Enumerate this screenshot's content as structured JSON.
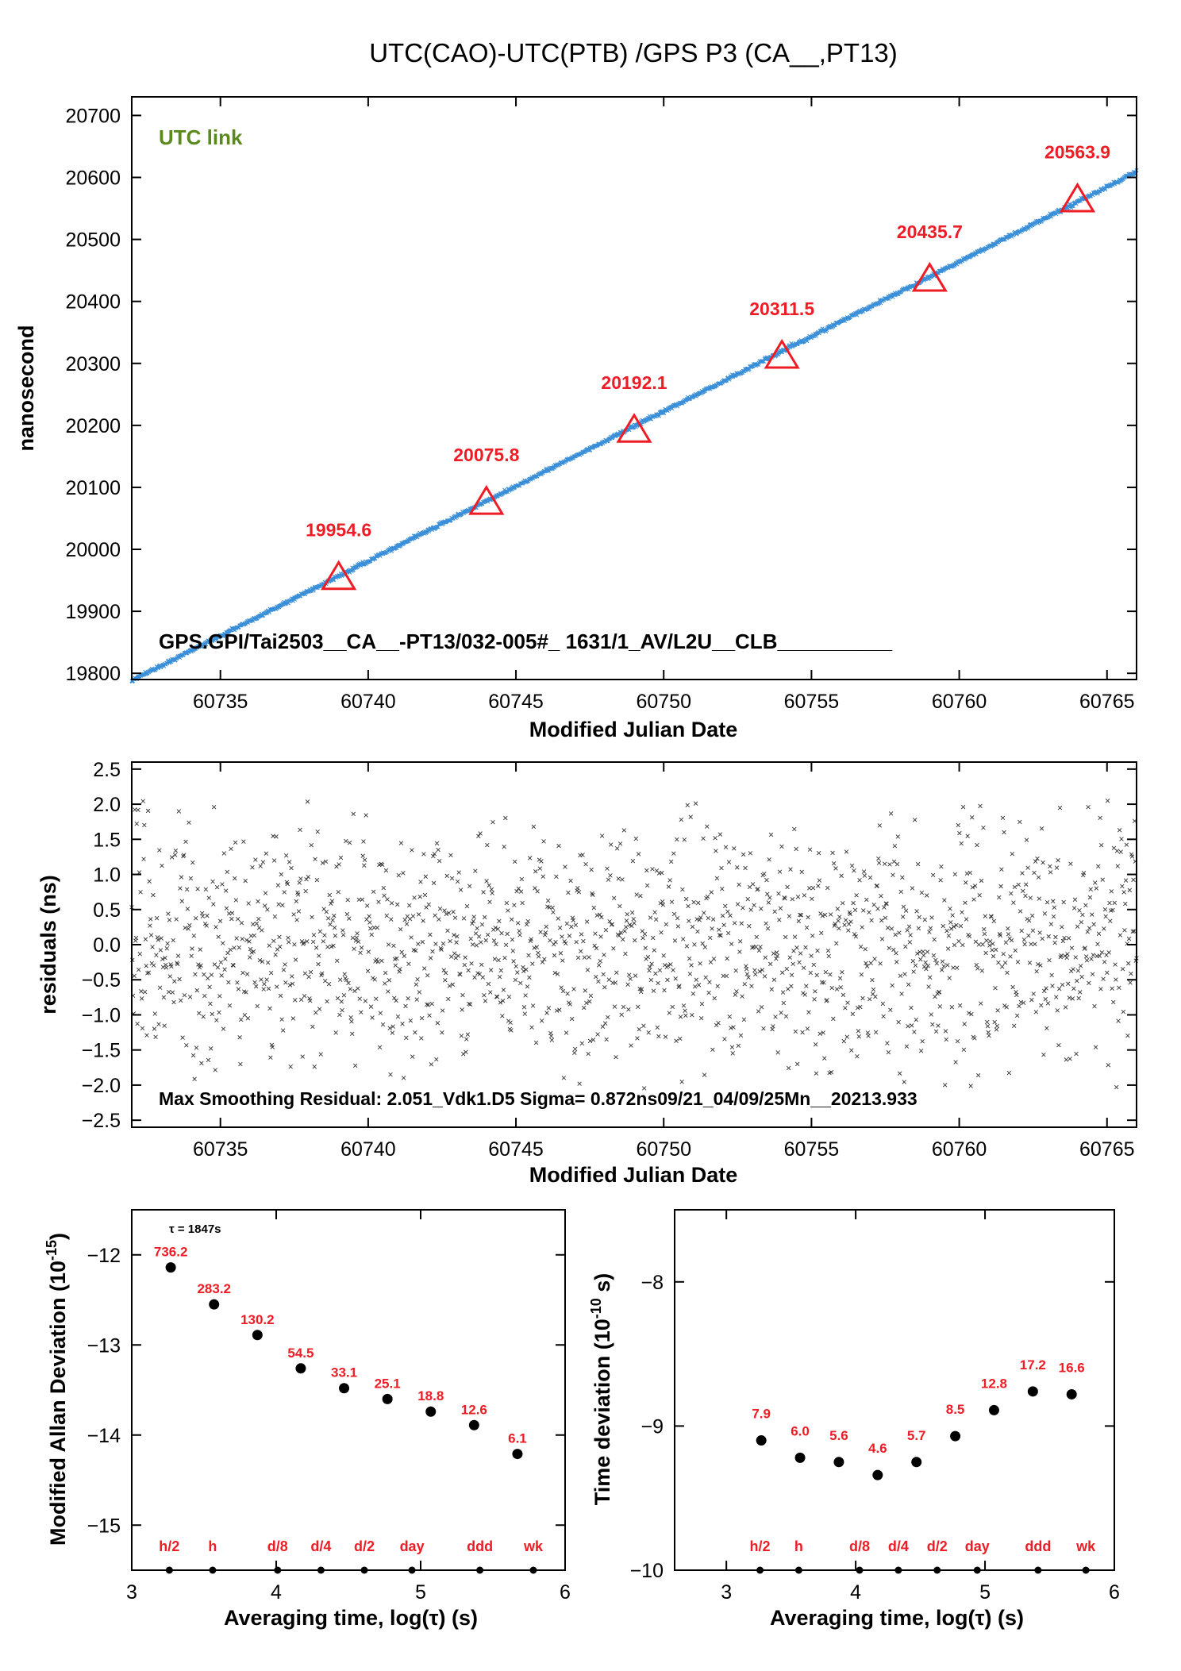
{
  "figure_title": "UTC(CAO)-UTC(PTB)  /GPS  P3  (CA__,PT13)",
  "chart_data": [
    {
      "id": "main",
      "type": "scatter",
      "title": "UTC(CAO)-UTC(PTB)  /GPS  P3  (CA__,PT13)",
      "xlabel": "Modified Julian Date",
      "ylabel": "nanosecond",
      "xlim": [
        60732,
        60766
      ],
      "ylim": [
        19790,
        20730
      ],
      "xticks": [
        60735,
        60740,
        60745,
        60750,
        60755,
        60760,
        60765
      ],
      "yticks": [
        19800,
        19900,
        20000,
        20100,
        20200,
        20300,
        20400,
        20500,
        20600,
        20700
      ],
      "trend": {
        "x": [
          60732,
          60766
        ],
        "y": [
          19788,
          20609
        ]
      },
      "series_color": "#3a8fd8",
      "markers": [
        {
          "x": 60739,
          "y": 19954.6,
          "label": "19954.6"
        },
        {
          "x": 60744,
          "y": 20075.8,
          "label": "20075.8"
        },
        {
          "x": 60749,
          "y": 20192.1,
          "label": "20192.1"
        },
        {
          "x": 60754,
          "y": 20311.5,
          "label": "20311.5"
        },
        {
          "x": 60759,
          "y": 20435.7,
          "label": "20435.7"
        },
        {
          "x": 60764,
          "y": 20563.9,
          "label": "20563.9"
        }
      ],
      "annotations": {
        "link": "UTC link",
        "file": "GPS.GPI/Tai2503__CA__-PT13/032-005#_  1631/1_AV/L2U__CLB__________"
      },
      "colors": {
        "link": "#5a8a1e",
        "marker": "#ee1c25"
      }
    },
    {
      "id": "residuals",
      "type": "scatter",
      "xlabel": "Modified Julian Date",
      "ylabel": "residuals (ns)",
      "xlim": [
        60732,
        60766
      ],
      "ylim": [
        -2.6,
        2.6
      ],
      "xticks": [
        60735,
        60740,
        60745,
        60750,
        60755,
        60760,
        60765
      ],
      "yticks": [
        -2.5,
        -2.0,
        -1.5,
        -1.0,
        -0.5,
        0.0,
        0.5,
        1.0,
        1.5,
        2.0,
        2.5
      ],
      "ytick_labels": [
        "−2.5",
        "−2.0",
        "−1.5",
        "−1.0",
        "−0.5",
        "0.0",
        "0.5",
        "1.0",
        "1.5",
        "2.0",
        "2.5"
      ],
      "max_residual": 2.051,
      "sigma_ns": 0.872,
      "annotation": "Max Smoothing Residual: 2.051_Vdk1.D5  Sigma= 0.872ns09/21_04/09/25Mn__20213.933"
    },
    {
      "id": "mdev",
      "type": "scatter",
      "xlabel": "Averaging time, log(τ) (s)",
      "ylabel": "Modified Allan Deviation (10",
      "ylabel_exp": "-15",
      "ylabel_tail": ")",
      "xlim": [
        3,
        6
      ],
      "ylim": [
        -15.5,
        -11.5
      ],
      "xticks": [
        3,
        4,
        5,
        6
      ],
      "yticks": [
        -15,
        -14,
        -13,
        -12
      ],
      "ytick_labels": [
        "−15",
        "−14",
        "−13",
        "−12"
      ],
      "tau_note": "τ = 1847s",
      "points": [
        {
          "x": 3.27,
          "y": -12.14,
          "label": "736.2"
        },
        {
          "x": 3.57,
          "y": -12.55,
          "label": "283.2"
        },
        {
          "x": 3.87,
          "y": -12.89,
          "label": "130.2"
        },
        {
          "x": 4.17,
          "y": -13.26,
          "label": "54.5"
        },
        {
          "x": 4.47,
          "y": -13.48,
          "label": "33.1"
        },
        {
          "x": 4.77,
          "y": -13.6,
          "label": "25.1"
        },
        {
          "x": 5.07,
          "y": -13.74,
          "label": "18.8"
        },
        {
          "x": 5.37,
          "y": -13.89,
          "label": "12.6"
        },
        {
          "x": 5.67,
          "y": -14.21,
          "label": "6.1"
        }
      ],
      "markers": [
        {
          "x": 3.26,
          "label": "h/2"
        },
        {
          "x": 3.56,
          "label": "h"
        },
        {
          "x": 4.01,
          "label": "d/8"
        },
        {
          "x": 4.31,
          "label": "d/4"
        },
        {
          "x": 4.61,
          "label": "d/2"
        },
        {
          "x": 4.94,
          "label": "day"
        },
        {
          "x": 5.41,
          "label": "ddd"
        },
        {
          "x": 5.78,
          "label": "wk"
        }
      ]
    },
    {
      "id": "tdev",
      "type": "scatter",
      "xlabel": "Averaging time, log(τ) (s)",
      "ylabel": "Time deviation (10",
      "ylabel_exp": "-10",
      "ylabel_tail": " s)",
      "xlim": [
        2.6,
        6
      ],
      "ylim": [
        -10,
        -7.5
      ],
      "xticks": [
        3,
        4,
        5,
        6
      ],
      "yticks": [
        -10,
        -9,
        -8
      ],
      "ytick_labels": [
        "−10",
        "−9",
        "−8"
      ],
      "points": [
        {
          "x": 3.27,
          "y": -9.1,
          "label": "7.9"
        },
        {
          "x": 3.57,
          "y": -9.22,
          "label": "6.0"
        },
        {
          "x": 3.87,
          "y": -9.25,
          "label": "5.6"
        },
        {
          "x": 4.17,
          "y": -9.34,
          "label": "4.6"
        },
        {
          "x": 4.47,
          "y": -9.25,
          "label": "5.7"
        },
        {
          "x": 4.77,
          "y": -9.07,
          "label": "8.5"
        },
        {
          "x": 5.07,
          "y": -8.89,
          "label": "12.8"
        },
        {
          "x": 5.37,
          "y": -8.76,
          "label": "17.2"
        },
        {
          "x": 5.67,
          "y": -8.78,
          "label": "16.6"
        }
      ],
      "markers": [
        {
          "x": 3.26,
          "label": "h/2"
        },
        {
          "x": 3.56,
          "label": "h"
        },
        {
          "x": 4.03,
          "label": "d/8"
        },
        {
          "x": 4.33,
          "label": "d/4"
        },
        {
          "x": 4.63,
          "label": "d/2"
        },
        {
          "x": 4.94,
          "label": "day"
        },
        {
          "x": 5.41,
          "label": "ddd"
        },
        {
          "x": 5.78,
          "label": "wk"
        }
      ]
    }
  ]
}
